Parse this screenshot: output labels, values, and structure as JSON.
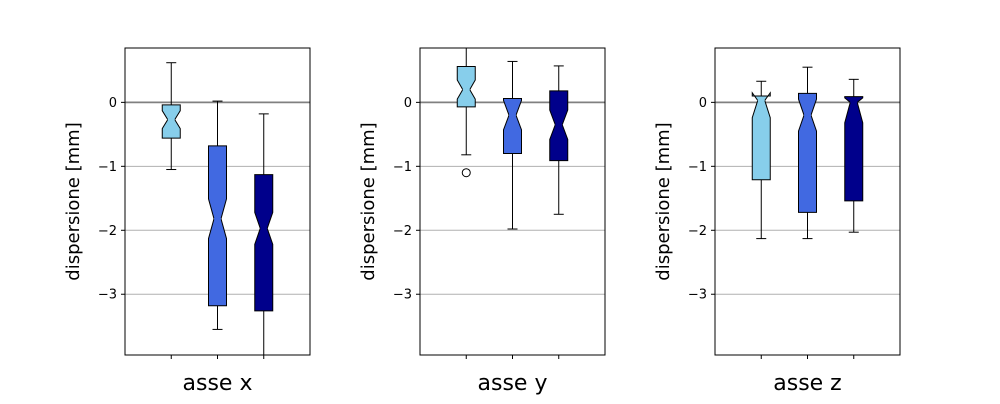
{
  "chart_data": [
    {
      "type": "boxplot",
      "notched": true,
      "xlabel": "asse x",
      "ylabel": "dispersione [mm]",
      "ylim": [
        -3.95,
        0.85
      ],
      "yticks": [
        0,
        -1,
        -2,
        -3
      ],
      "ytick_labels": [
        "0",
        "−1",
        "−2",
        "−3"
      ],
      "reference_line": 0,
      "grid": "horizontal",
      "boxes": [
        {
          "color": "#87ceeb",
          "whisker_low": -1.05,
          "q1": -0.56,
          "median": -0.27,
          "q3": -0.04,
          "whisker_high": 0.62,
          "notch_low": -0.41,
          "notch_high": -0.13,
          "outliers": []
        },
        {
          "color": "#4169e1",
          "whisker_low": -3.55,
          "q1": -3.18,
          "median": -1.82,
          "q3": -0.68,
          "whisker_high": 0.02,
          "notch_low": -2.13,
          "notch_high": -1.51,
          "outliers": []
        },
        {
          "color": "#00008b",
          "whisker_low": -3.95,
          "q1": -3.26,
          "median": -1.97,
          "q3": -1.13,
          "whisker_high": -0.18,
          "notch_low": -2.22,
          "notch_high": -1.72,
          "outliers": []
        }
      ]
    },
    {
      "type": "boxplot",
      "notched": true,
      "xlabel": "asse y",
      "ylabel": "dispersione [mm]",
      "ylim": [
        -3.95,
        0.85
      ],
      "yticks": [
        0,
        -1,
        -2,
        -3
      ],
      "ytick_labels": [
        "0",
        "−1",
        "−2",
        "−3"
      ],
      "reference_line": 0,
      "grid": "horizontal",
      "boxes": [
        {
          "color": "#87ceeb",
          "whisker_low": -0.82,
          "q1": -0.07,
          "median": 0.2,
          "q3": 0.56,
          "whisker_high": 0.85,
          "notch_low": 0.05,
          "notch_high": 0.35,
          "outliers": [
            -1.1
          ]
        },
        {
          "color": "#4169e1",
          "whisker_low": -1.98,
          "q1": -0.8,
          "median": -0.2,
          "q3": 0.06,
          "whisker_high": 0.64,
          "notch_low": -0.43,
          "notch_high": 0.03,
          "outliers": []
        },
        {
          "color": "#00008b",
          "whisker_low": -1.75,
          "q1": -0.91,
          "median": -0.35,
          "q3": 0.18,
          "whisker_high": 0.57,
          "notch_low": -0.58,
          "notch_high": -0.12,
          "outliers": []
        }
      ]
    },
    {
      "type": "boxplot",
      "notched": true,
      "xlabel": "asse z",
      "ylabel": "dispersione [mm]",
      "ylim": [
        -3.95,
        0.85
      ],
      "yticks": [
        0,
        -1,
        -2,
        -3
      ],
      "ytick_labels": [
        "0",
        "−1",
        "−2",
        "−3"
      ],
      "reference_line": 0,
      "grid": "horizontal",
      "boxes": [
        {
          "color": "#87ceeb",
          "whisker_low": -2.13,
          "q1": -1.21,
          "median": 0.03,
          "q3": 0.1,
          "whisker_high": 0.33,
          "notch_low": -0.24,
          "notch_high": 0.15,
          "outliers": []
        },
        {
          "color": "#4169e1",
          "whisker_low": -2.13,
          "q1": -1.72,
          "median": -0.2,
          "q3": 0.14,
          "whisker_high": 0.55,
          "notch_low": -0.45,
          "notch_high": 0.05,
          "outliers": []
        },
        {
          "color": "#00008b",
          "whisker_low": -2.03,
          "q1": -1.54,
          "median": 0.0,
          "q3": 0.09,
          "whisker_high": 0.36,
          "notch_low": -0.32,
          "notch_high": 0.07,
          "outliers": []
        }
      ]
    }
  ],
  "style": {
    "axis_color": "#000000",
    "grid_color": "#b0b0b0",
    "zero_line_color": "#808080",
    "box_edge_color": "#000000"
  }
}
